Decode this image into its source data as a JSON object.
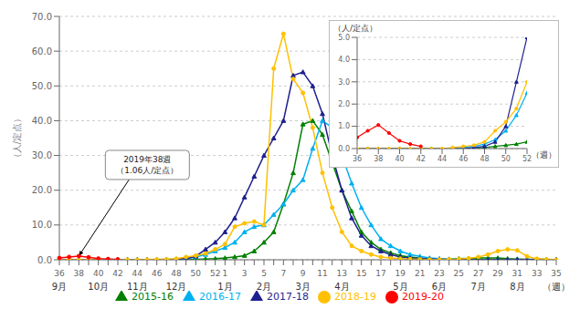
{
  "chart_data": [
    {
      "type": "line",
      "y_label": "（人/定点）",
      "categories": [
        "36",
        null,
        "38",
        null,
        "40",
        null,
        "42",
        null,
        "44",
        null,
        "46",
        null,
        "48",
        null,
        "50",
        null,
        "52",
        "1",
        null,
        "3",
        null,
        "5",
        null,
        "7",
        null,
        "9",
        null,
        "11",
        null,
        "13",
        null,
        "15",
        null,
        "17",
        null,
        "19",
        null,
        "21",
        null,
        "23",
        null,
        "25",
        null,
        "27",
        null,
        "29",
        null,
        "31",
        null,
        "33",
        null,
        "35"
      ],
      "month_labels": [
        {
          "category": "36",
          "label": "9月"
        },
        {
          "category": "40",
          "label": "10月"
        },
        {
          "category": "44",
          "label": "11月"
        },
        {
          "category": "48",
          "label": "12月"
        },
        {
          "category": "1",
          "label": "1月"
        },
        {
          "category": "5",
          "label": "2月"
        },
        {
          "category": "9",
          "label": "3月"
        },
        {
          "category": "13",
          "label": "4月"
        },
        {
          "category": "19",
          "label": "5月"
        },
        {
          "category": "23",
          "label": "6月"
        },
        {
          "category": "27",
          "label": "7月"
        },
        {
          "category": "31",
          "label": "8月"
        },
        {
          "category": "35",
          "label": "（週）"
        }
      ],
      "ylim": [
        0,
        70
      ],
      "yticks": [
        {
          "value": 0,
          "label": "0.0"
        },
        {
          "value": 10,
          "label": "10.0"
        },
        {
          "value": 20,
          "label": "20.0"
        },
        {
          "value": 30,
          "label": "30.0"
        },
        {
          "value": 40,
          "label": "40.0"
        },
        {
          "value": 50,
          "label": "50.0"
        },
        {
          "value": 60,
          "label": "60.0"
        },
        {
          "value": 70,
          "label": "70.0"
        }
      ],
      "grid": "y",
      "legend": "bottom",
      "annotations": [
        {
          "text": "2019年38週\n（1.06人/定点）",
          "x": "38",
          "y": 1.06
        }
      ],
      "series": [
        {
          "name": "2015-16",
          "color": "#008000",
          "marker": "triangle",
          "values": [
            0,
            0,
            0,
            0,
            0,
            0,
            0,
            0,
            0,
            0,
            0,
            0,
            0.05,
            0.1,
            0.15,
            0.2,
            0.3,
            0.5,
            0.8,
            1.2,
            2.5,
            5.0,
            8.0,
            16.0,
            25.0,
            39.0,
            40.0,
            36.0,
            28.0,
            20.0,
            14.0,
            8.0,
            5.0,
            3.0,
            2.0,
            1.2,
            0.8,
            0.5,
            0.3,
            0.2,
            0.15,
            0.3,
            0.4,
            0.5,
            0.5,
            0.5,
            0.3,
            0.2,
            0.1,
            0.1,
            0.1,
            0
          ]
        },
        {
          "name": "2016-17",
          "color": "#00b0f0",
          "marker": "triangle",
          "values": [
            0,
            0,
            0,
            0,
            0,
            0,
            0,
            0,
            0,
            0,
            0.05,
            0.1,
            0.2,
            0.4,
            0.8,
            1.5,
            2.5,
            3.5,
            5.0,
            8.0,
            9.5,
            10.0,
            13.0,
            16.0,
            20.0,
            23.0,
            32.0,
            40.0,
            38.0,
            30.0,
            22.0,
            15.0,
            10.0,
            6.0,
            4.0,
            2.5,
            1.5,
            1.0,
            0.5,
            0.3,
            0.2,
            0.1,
            0.05,
            0.05,
            0.05,
            0.05,
            0.05,
            0.05,
            0.05,
            0.05,
            0.05,
            0.05
          ]
        },
        {
          "name": "2017-18",
          "color": "#1f1f8f",
          "marker": "triangle",
          "values": [
            0,
            0,
            0,
            0,
            0,
            0,
            0,
            0,
            0,
            0,
            0,
            0.05,
            0.1,
            0.3,
            1.0,
            3.0,
            5.0,
            8.0,
            12.0,
            18.0,
            24.0,
            30.0,
            35.0,
            40.0,
            53.0,
            54.0,
            50.0,
            42.0,
            30.0,
            20.0,
            12.0,
            7.0,
            4.0,
            2.5,
            1.5,
            0.8,
            0.5,
            0.3,
            0.2,
            0.1,
            0.05,
            0.05,
            0.05,
            0.05,
            0.05,
            0.05,
            0.05,
            0.05,
            0.05,
            0.05,
            0,
            0
          ]
        },
        {
          "name": "2018-19",
          "color": "#ffc000",
          "marker": "circle",
          "values": [
            0,
            0,
            0,
            0,
            0,
            0,
            0,
            0,
            0,
            0.05,
            0.1,
            0.15,
            0.3,
            0.8,
            1.2,
            1.8,
            3.0,
            4.5,
            9.5,
            10.5,
            11.0,
            10.0,
            55.0,
            65.0,
            52.0,
            48.0,
            38.0,
            25.0,
            15.0,
            8.0,
            4.0,
            2.5,
            1.5,
            0.8,
            0.5,
            0.3,
            0.2,
            0.1,
            0.05,
            0.05,
            0.1,
            0.2,
            0.4,
            0.8,
            1.5,
            2.5,
            3.0,
            2.7,
            1.0,
            0.3,
            0.1,
            0
          ]
        },
        {
          "name": "2019-20",
          "color": "#ff0000",
          "marker": "circle",
          "values": [
            0.5,
            0.8,
            1.06,
            0.7,
            0.35,
            0.2,
            0.1,
            null,
            null,
            null,
            null,
            null,
            null,
            null,
            null,
            null,
            null,
            null,
            null,
            null,
            null,
            null,
            null,
            null,
            null,
            null,
            null,
            null,
            null,
            null,
            null,
            null,
            null,
            null,
            null,
            null,
            null,
            null,
            null,
            null,
            null,
            null,
            null,
            null,
            null,
            null,
            null,
            null,
            null,
            null,
            null,
            null
          ]
        }
      ]
    },
    {
      "type": "line",
      "y_label": "（人/定点）",
      "x_label": "（週）",
      "x": [
        36,
        37,
        38,
        39,
        40,
        41,
        42,
        43,
        44,
        45,
        46,
        47,
        48,
        49,
        50,
        51,
        52
      ],
      "xlim": [
        36,
        52
      ],
      "xticks": [
        36,
        38,
        40,
        42,
        44,
        46,
        48,
        50,
        52
      ],
      "ylim": [
        0,
        5.0
      ],
      "yticks": [
        {
          "value": 0,
          "label": "0.0"
        },
        {
          "value": 1,
          "label": "1.0"
        },
        {
          "value": 2,
          "label": "2.0"
        },
        {
          "value": 3,
          "label": "3.0"
        },
        {
          "value": 4,
          "label": "4.0"
        },
        {
          "value": 5,
          "label": "5.0"
        }
      ],
      "grid": "y",
      "series": [
        {
          "name": "2015-16",
          "color": "#008000",
          "marker": "triangle",
          "values": [
            0,
            0,
            0,
            0,
            0,
            0,
            0,
            0,
            0,
            0,
            0,
            0,
            0.05,
            0.1,
            0.15,
            0.2,
            0.3
          ]
        },
        {
          "name": "2016-17",
          "color": "#00b0f0",
          "marker": "triangle",
          "values": [
            0,
            0,
            0,
            0,
            0,
            0,
            0,
            0,
            0,
            0,
            0.05,
            0.1,
            0.2,
            0.4,
            0.8,
            1.5,
            2.5
          ]
        },
        {
          "name": "2017-18",
          "color": "#1f1f8f",
          "marker": "triangle",
          "values": [
            0,
            0,
            0,
            0,
            0,
            0,
            0,
            0,
            0,
            0,
            0,
            0.05,
            0.1,
            0.3,
            1.0,
            3.0,
            5.0
          ]
        },
        {
          "name": "2018-19",
          "color": "#ffc000",
          "marker": "circle",
          "values": [
            0,
            0,
            0,
            0,
            0,
            0,
            0,
            0,
            0,
            0.05,
            0.1,
            0.15,
            0.3,
            0.8,
            1.2,
            1.8,
            3.0
          ]
        },
        {
          "name": "2019-20",
          "color": "#ff0000",
          "marker": "circle",
          "values": [
            0.5,
            0.8,
            1.06,
            0.7,
            0.35,
            0.2,
            0.1,
            null,
            null,
            null,
            null,
            null,
            null,
            null,
            null,
            null,
            null
          ]
        }
      ]
    }
  ]
}
